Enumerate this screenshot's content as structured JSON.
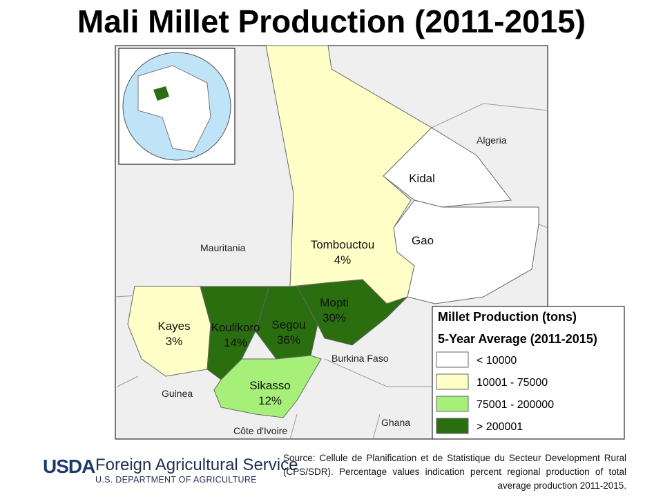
{
  "title": "Mali Millet Production (2011-2015)",
  "regions": [
    {
      "name": "Tombouctou",
      "share": "4%",
      "color": "#ffffc8"
    },
    {
      "name": "Kidal",
      "color": "#ffffff"
    },
    {
      "name": "Gao",
      "color": "#ffffff"
    },
    {
      "name": "Kayes",
      "share": "3%",
      "color": "#ffffc8"
    },
    {
      "name": "Koulikoro",
      "share": "14%",
      "color": "#2a6e10"
    },
    {
      "name": "Segou",
      "share": "36%",
      "color": "#2a6e10"
    },
    {
      "name": "Mopti",
      "share": "30%",
      "color": "#2a6e10"
    },
    {
      "name": "Sikasso",
      "share": "12%",
      "color": "#a6f07a"
    }
  ],
  "countries": [
    "Algeria",
    "Mauritania",
    "Burkina Faso",
    "Guinea",
    "Ghana",
    "Côte d'Ivoire"
  ],
  "legend": {
    "title": "Millet Production (tons)",
    "subtitle": "5-Year Average (2011-2015)",
    "items": [
      {
        "label": "< 10000",
        "color": "#ffffff"
      },
      {
        "label": "10001 - 75000",
        "color": "#ffffc8"
      },
      {
        "label": "75001 - 200000",
        "color": "#a6f07a"
      },
      {
        "label": "> 200001",
        "color": "#2a6e10"
      }
    ]
  },
  "footer": {
    "logo": "USDA",
    "agency": "Foreign Agricultural Service",
    "department": "U.S. DEPARTMENT OF AGRICULTURE",
    "source": "Source: Cellule de Planification et de Statistique du Secteur Development Rural (CPS/SDR). Percentage values indication percent regional production of total average production 2011-2015."
  }
}
